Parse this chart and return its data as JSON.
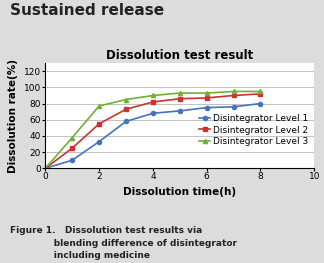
{
  "title_main": "Sustained release",
  "title_sub": "Dissolution test result",
  "xlabel": "Dissolution time(h)",
  "ylabel": "Dissolution rate(%)",
  "caption_line1": "Figure 1.   Dissolution test results via",
  "caption_line2": "              blending difference of disintegrator",
  "caption_line3": "              including medicine",
  "xlim": [
    0,
    10
  ],
  "ylim": [
    0,
    130
  ],
  "yticks": [
    0,
    20,
    40,
    60,
    80,
    100,
    120
  ],
  "xticks": [
    0,
    2,
    4,
    6,
    8,
    10
  ],
  "series": [
    {
      "label": "Disintegrator Level 1",
      "color": "#4472C4",
      "marker": "o",
      "x": [
        0,
        1,
        2,
        3,
        4,
        5,
        6,
        7,
        8
      ],
      "y": [
        0,
        10,
        33,
        58,
        68,
        71,
        75,
        76,
        80
      ]
    },
    {
      "label": "Disintegrator Level 2",
      "color": "#D03030",
      "marker": "s",
      "x": [
        0,
        1,
        2,
        3,
        4,
        5,
        6,
        7,
        8
      ],
      "y": [
        0,
        25,
        55,
        73,
        82,
        86,
        87,
        90,
        92
      ]
    },
    {
      "label": "Disintegrator Level 3",
      "color": "#70B030",
      "marker": "^",
      "x": [
        0,
        1,
        2,
        3,
        4,
        5,
        6,
        7,
        8
      ],
      "y": [
        0,
        38,
        77,
        85,
        90,
        93,
        93,
        95,
        95
      ]
    }
  ],
  "background_color": "#DCDCDC",
  "plot_bg_color": "#FFFFFF",
  "grid_color": "#AAAAAA",
  "title_main_fontsize": 11,
  "title_sub_fontsize": 8.5,
  "axis_label_fontsize": 7.5,
  "tick_fontsize": 6.5,
  "legend_fontsize": 6.5,
  "caption_fontsize": 6.5
}
